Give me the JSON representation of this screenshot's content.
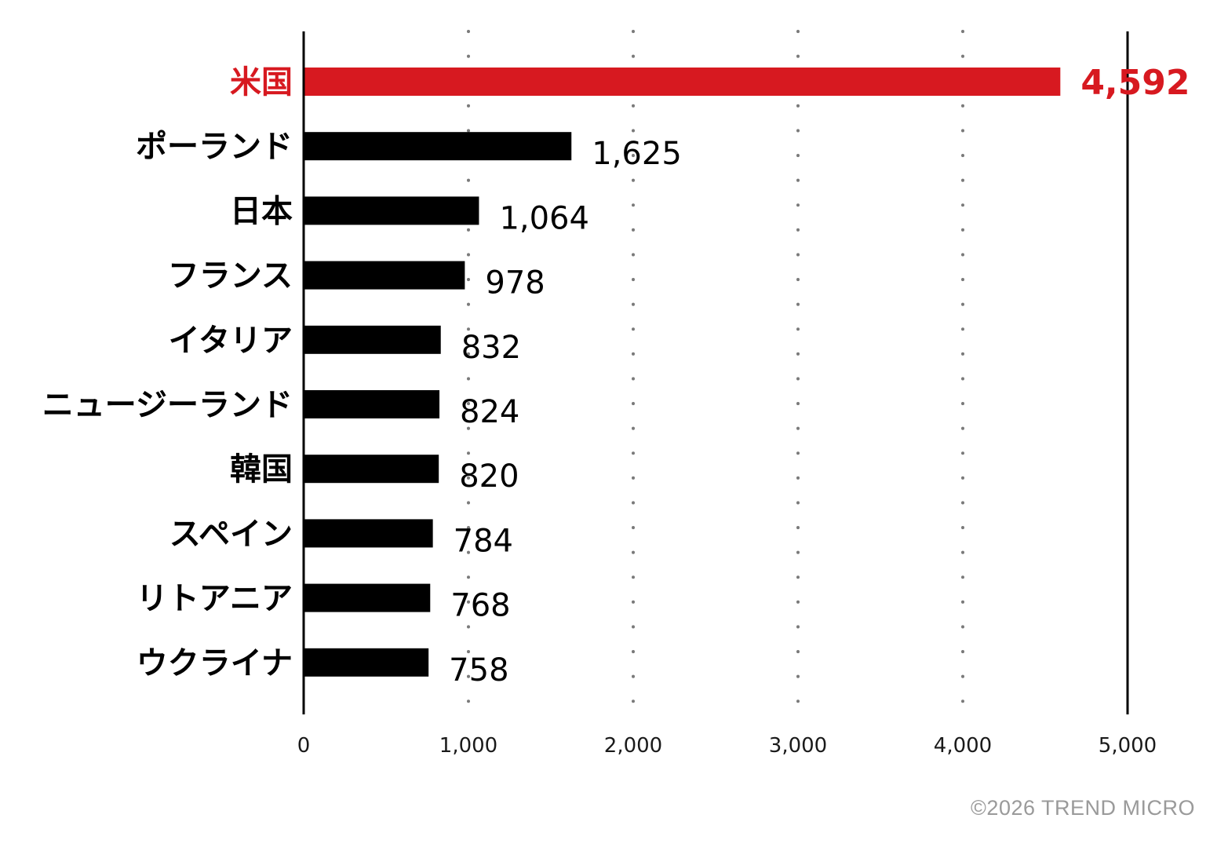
{
  "chart_data": {
    "type": "bar",
    "orientation": "horizontal",
    "categories": [
      "米国",
      "ポーランド",
      "日本",
      "フランス",
      "イタリア",
      "ニュージーランド",
      "韓国",
      "スペイン",
      "リトアニア",
      "ウクライナ"
    ],
    "values": [
      4592,
      1625,
      1064,
      978,
      832,
      824,
      820,
      784,
      768,
      758
    ],
    "value_labels": [
      "4,592",
      "1,625",
      "1,064",
      "978",
      "832",
      "824",
      "820",
      "784",
      "768",
      "758"
    ],
    "highlight_index": 0,
    "xlim": [
      0,
      5000
    ],
    "xticks": [
      0,
      1000,
      2000,
      3000,
      4000,
      5000
    ],
    "xtick_labels": [
      "0",
      "1,000",
      "2,000",
      "3,000",
      "4,000",
      "5,000"
    ],
    "grid": "vertical dotted",
    "legend": "none",
    "colors": {
      "highlight": "#d71920",
      "bar": "#000000",
      "grid": "#7a7a7a",
      "text": "#000000"
    }
  },
  "copyright": "©2026 TREND MICRO"
}
